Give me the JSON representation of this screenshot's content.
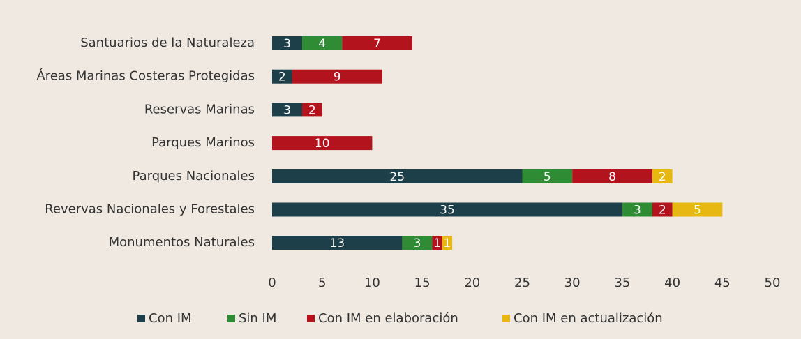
{
  "chart_data": {
    "type": "stacked_barh",
    "categories": [
      "Santuarios de la Naturaleza",
      "Áreas Marinas Costeras Protegidas",
      "Reservas Marinas",
      "Parques Marinos",
      "Parques Nacionales",
      "Revervas Nacionales y Forestales",
      "Monumentos Naturales"
    ],
    "series": [
      {
        "name": "Con IM",
        "color": "#1d3f4a",
        "values": [
          3,
          2,
          3,
          null,
          25,
          35,
          13
        ]
      },
      {
        "name": "Sin IM",
        "color": "#2f8c34",
        "values": [
          4,
          null,
          null,
          null,
          5,
          3,
          3
        ]
      },
      {
        "name": "Con IM en elaboración",
        "color": "#b3131d",
        "values": [
          7,
          9,
          2,
          10,
          8,
          2,
          1
        ]
      },
      {
        "name": "Con IM en actualización",
        "color": "#e7b812",
        "values": [
          null,
          null,
          null,
          null,
          2,
          5,
          1
        ]
      }
    ],
    "xlim": [
      0,
      50
    ],
    "xticks": [
      0,
      5,
      10,
      15,
      20,
      25,
      30,
      35,
      40,
      45,
      50
    ],
    "legend": "bottom"
  }
}
